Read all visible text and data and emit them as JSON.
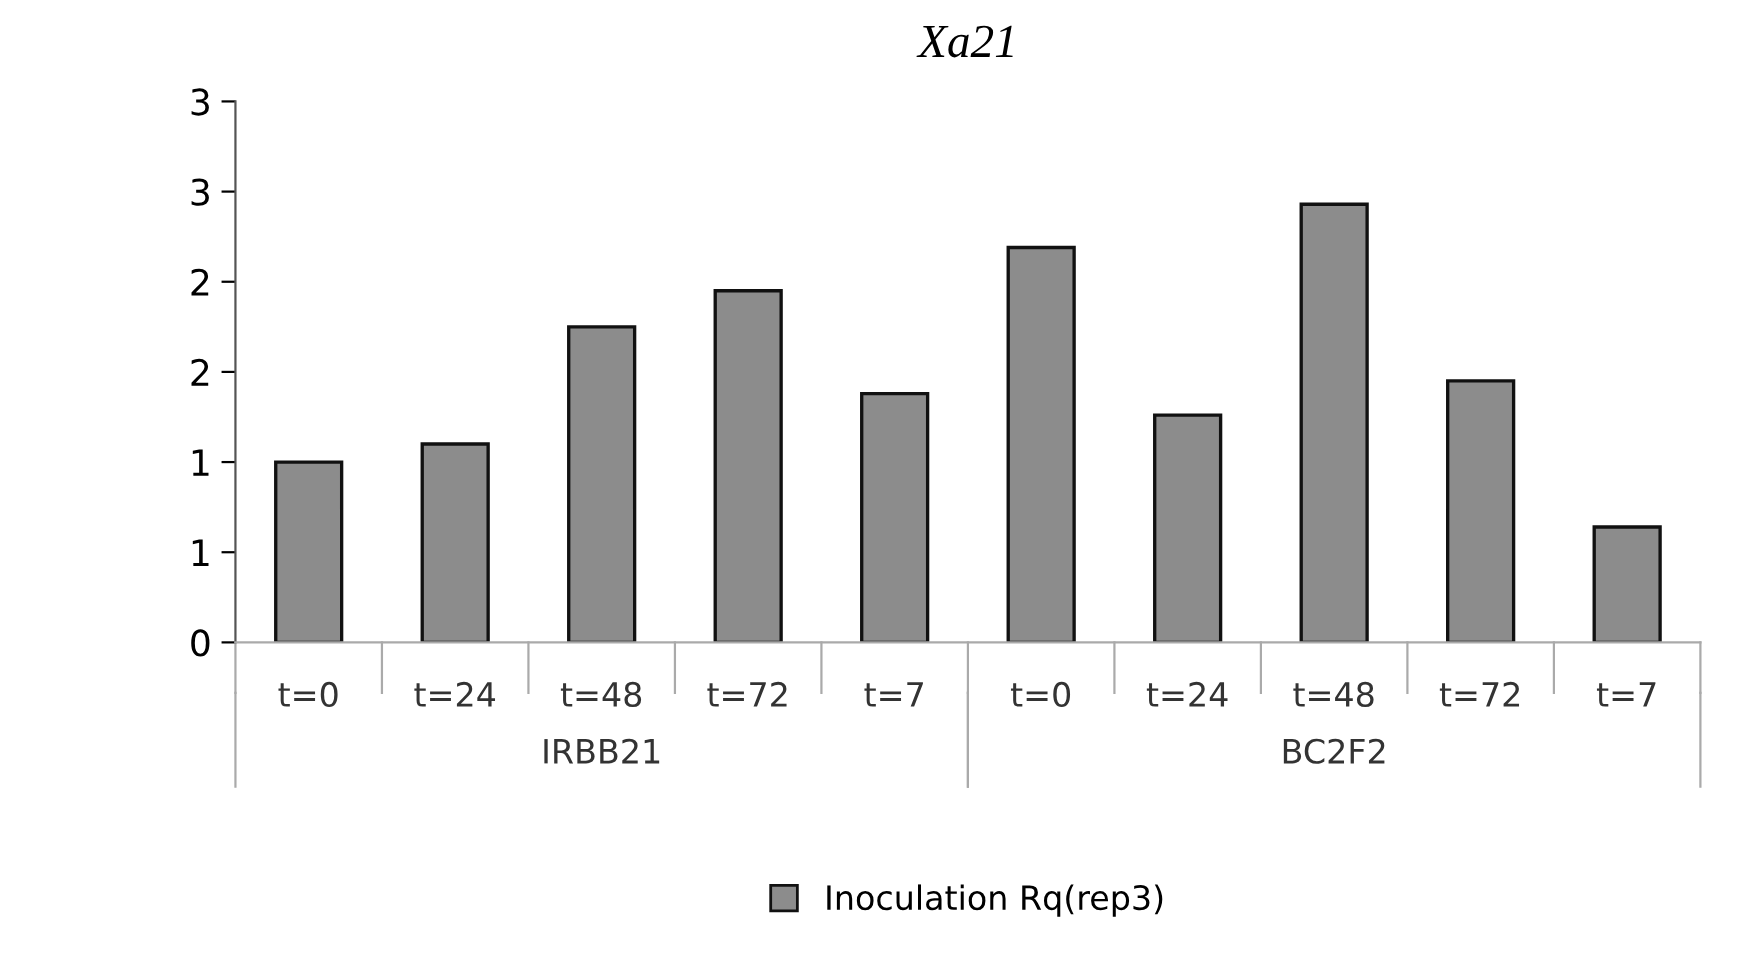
{
  "chart_data": {
    "type": "bar",
    "title": "Xa21",
    "categories": [
      "t=0",
      "t=24",
      "t=48",
      "t=72",
      "t=7",
      "t=0",
      "t=24",
      "t=48",
      "t=72",
      "t=7"
    ],
    "series": [
      {
        "name": "Inoculation Rq(rep3)",
        "color": "#8c8c8c",
        "values": [
          1.0,
          1.1,
          1.75,
          1.95,
          1.38,
          2.19,
          1.26,
          2.43,
          1.45,
          0.64
        ]
      }
    ],
    "annotations": [
      "IRBB21",
      "BC2F2"
    ],
    "ylim": [
      0,
      3
    ],
    "yticks": [
      0,
      {
        "value": 0.5,
        "label": "1"
      },
      1,
      {
        "value": 1.5,
        "label": "2"
      },
      2,
      {
        "value": 2.5,
        "label": "3"
      },
      3
    ],
    "grid": false,
    "legend": "bottom"
  }
}
